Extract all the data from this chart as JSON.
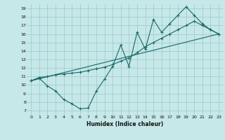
{
  "xlabel": "Humidex (Indice chaleur)",
  "bg_color": "#c6e8e8",
  "grid_color": "#9cc8c8",
  "line_color": "#1a6868",
  "xlim": [
    -0.5,
    23.5
  ],
  "ylim": [
    6.5,
    19.5
  ],
  "xticks": [
    0,
    1,
    2,
    3,
    4,
    5,
    6,
    7,
    8,
    9,
    10,
    11,
    12,
    13,
    14,
    15,
    16,
    17,
    18,
    19,
    20,
    21,
    22,
    23
  ],
  "yticks": [
    7,
    8,
    9,
    10,
    11,
    12,
    13,
    14,
    15,
    16,
    17,
    18,
    19
  ],
  "line1_x": [
    0,
    1,
    2,
    3,
    4,
    5,
    6,
    7,
    8,
    9,
    10,
    11,
    12,
    13,
    14,
    15,
    16,
    17,
    18,
    19,
    20,
    21,
    22,
    23
  ],
  "line1_y": [
    10.5,
    10.8,
    9.9,
    9.3,
    8.3,
    7.8,
    7.2,
    7.3,
    9.3,
    10.7,
    12.2,
    14.7,
    12.2,
    16.2,
    14.2,
    17.7,
    16.2,
    17.2,
    18.2,
    19.2,
    18.2,
    17.2,
    16.5,
    16.0
  ],
  "line2_x": [
    0,
    1,
    2,
    3,
    4,
    5,
    6,
    7,
    8,
    9,
    10,
    11,
    12,
    13,
    14,
    15,
    16,
    17,
    18,
    19,
    20,
    21,
    22,
    23
  ],
  "line2_y": [
    10.5,
    10.9,
    11.0,
    11.2,
    11.3,
    11.4,
    11.5,
    11.7,
    11.9,
    12.1,
    12.4,
    12.8,
    13.2,
    13.8,
    14.5,
    15.0,
    15.5,
    16.0,
    16.5,
    17.0,
    17.5,
    17.0,
    16.5,
    16.0
  ],
  "line3_x": [
    0,
    23
  ],
  "line3_y": [
    10.5,
    16.0
  ]
}
